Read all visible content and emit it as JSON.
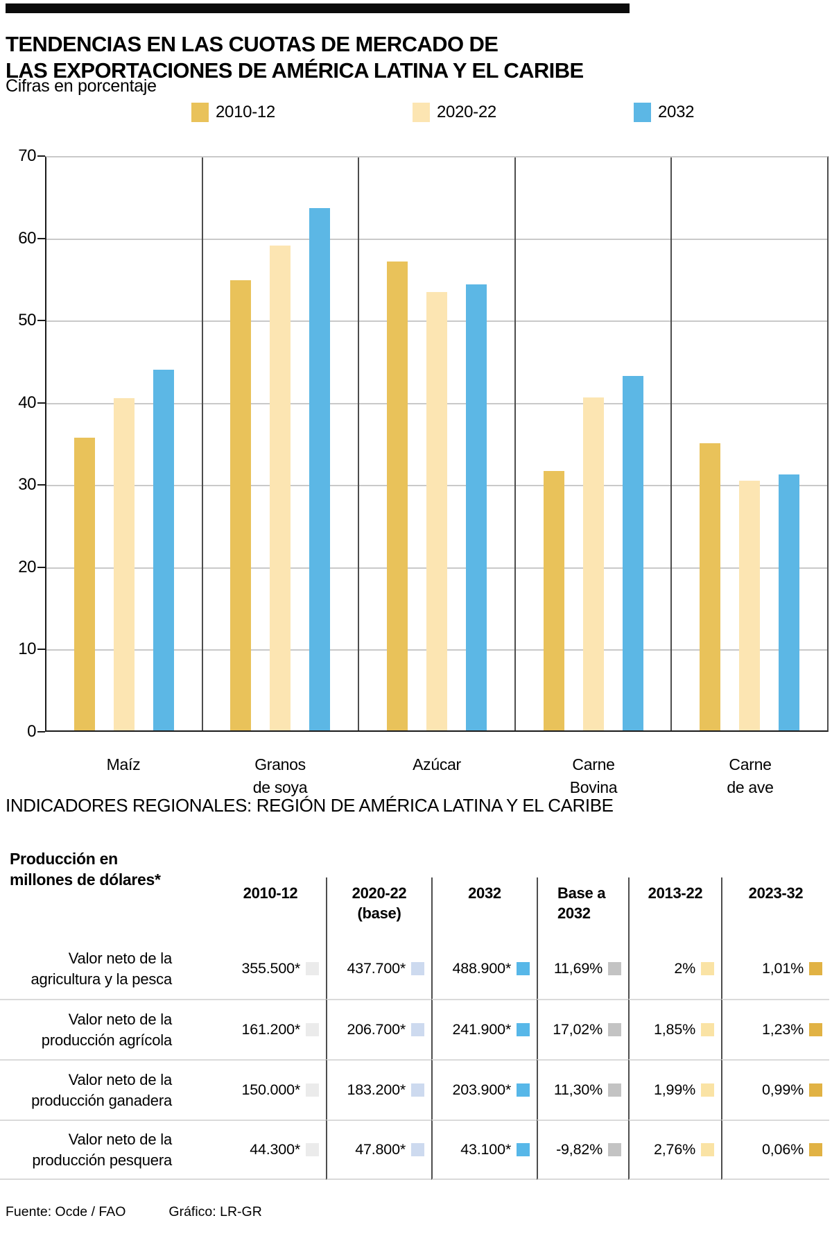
{
  "header": {
    "title_line1": "TENDENCIAS EN LAS CUOTAS DE MERCADO DE",
    "title_line2": "LAS EXPORTACIONES DE AMÉRICA LATINA Y EL CARIBE",
    "subtitle": "Cifras en porcentaje"
  },
  "legend": {
    "items": [
      {
        "label": "2010-12",
        "color": "#E9C25A"
      },
      {
        "label": "2020-22",
        "color": "#FCE5B2"
      },
      {
        "label": "2032",
        "color": "#5CB7E5"
      }
    ]
  },
  "chart_data": {
    "type": "bar",
    "title": "Tendencias en las cuotas de mercado de las exportaciones de América Latina y el Caribe",
    "units": "percent",
    "categories": [
      "Maíz",
      "Granos\nde soya",
      "Azúcar",
      "Carne\nBovina",
      "Carne\nde ave"
    ],
    "series": [
      {
        "name": "2010-12",
        "color": "#E9C25A",
        "values": [
          35.8,
          55.0,
          57.3,
          31.7,
          35.1
        ]
      },
      {
        "name": "2020-22",
        "color": "#FCE5B2",
        "values": [
          40.6,
          59.2,
          53.6,
          40.7,
          30.5
        ]
      },
      {
        "name": "2032",
        "color": "#5CB7E5",
        "values": [
          44.1,
          63.8,
          54.5,
          43.3,
          31.3
        ]
      }
    ],
    "xlabel": "",
    "ylabel": "",
    "ylim": [
      0,
      70
    ],
    "yticks": [
      0,
      10,
      20,
      30,
      40,
      50,
      60,
      70
    ],
    "grid": true,
    "legend_position": "top"
  },
  "section": {
    "title": "INDICADORES REGIONALES: REGIÓN DE AMÉRICA LATINA Y EL CARIBE"
  },
  "table": {
    "corner_label": "Producción en\nmillones de dólares*",
    "columns": [
      "2010-12",
      "2020-22\n(base)",
      "2032",
      "Base a\n2032",
      "2013-22",
      "2023-32"
    ],
    "column_marker_colors": [
      "#EBEBEB",
      "#CDDAEF",
      "#57B7E8",
      "#C3C3C3",
      "#FAE3A5",
      "#E1B244"
    ],
    "rows": [
      {
        "label": "Valor neto de la\nagricultura y la pesca",
        "values": [
          "355.500*",
          "437.700*",
          "488.900*",
          "11,69%",
          "2%",
          "1,01%"
        ]
      },
      {
        "label": "Valor neto de la\nproducción agrícola",
        "values": [
          "161.200*",
          "206.700*",
          "241.900*",
          "17,02%",
          "1,85%",
          "1,23%"
        ]
      },
      {
        "label": "Valor neto de la\nproducción ganadera",
        "values": [
          "150.000*",
          "183.200*",
          "203.900*",
          "11,30%",
          "1,99%",
          "0,99%"
        ]
      },
      {
        "label": "Valor neto de la\nproducción pesquera",
        "values": [
          "44.300*",
          "47.800*",
          "43.100*",
          "-9,82%",
          "2,76%",
          "0,06%"
        ]
      }
    ]
  },
  "footer": {
    "source": "Fuente: Ocde / FAO",
    "credit": "Gráfico: LR-GR"
  }
}
